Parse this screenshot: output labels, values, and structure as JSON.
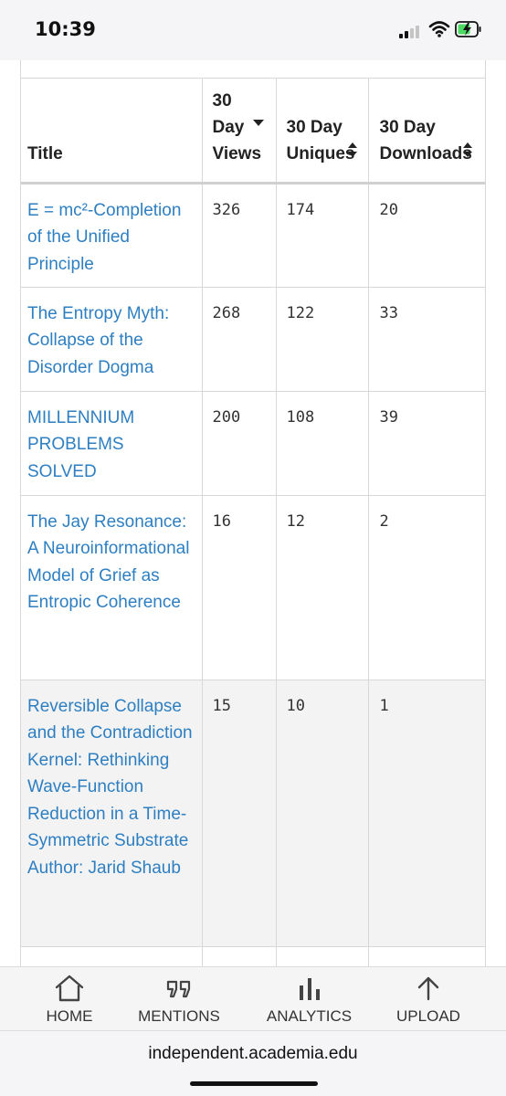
{
  "status_bar": {
    "time": "10:39"
  },
  "table": {
    "headers": [
      {
        "label": "Title"
      },
      {
        "label": "30 Day Views",
        "sort": "descending"
      },
      {
        "label": "30 Day Uniques",
        "sort": "none"
      },
      {
        "label": "30 Day Downloads",
        "sort": "none"
      }
    ],
    "rows": [
      {
        "title": "E = mc²-Completion of the Unified Principle",
        "views": "326",
        "uniques": "174",
        "downloads": "20"
      },
      {
        "title": "The Entropy Myth: Collapse of the Disorder Dogma",
        "views": "268",
        "uniques": "122",
        "downloads": "33"
      },
      {
        "title": "MILLENNIUM PROBLEMS SOLVED",
        "views": "200",
        "uniques": "108",
        "downloads": "39"
      },
      {
        "title": "The Jay Resonance: A Neuroinformational Model of Grief as Entropic Coherence",
        "views": "16",
        "uniques": "12",
        "downloads": "2"
      },
      {
        "title": "Reversible Collapse and the Contradiction Kernel: Rethinking Wave-Function Reduction in a Time-Symmetric Substrate Author: Jarid Shaub",
        "views": "15",
        "uniques": "10",
        "downloads": "1"
      }
    ]
  },
  "bottom_nav": {
    "items": [
      {
        "label": "HOME",
        "icon": "home-icon"
      },
      {
        "label": "MENTIONS",
        "icon": "quote-icon"
      },
      {
        "label": "ANALYTICS",
        "icon": "bar-chart-icon"
      },
      {
        "label": "UPLOAD",
        "icon": "upload-arrow-icon"
      }
    ]
  },
  "browser": {
    "url": "independent.academia.edu"
  },
  "colors": {
    "link": "#2e7fc2",
    "row_shade": "#f3f3f3",
    "border": "#d8d8d8"
  }
}
